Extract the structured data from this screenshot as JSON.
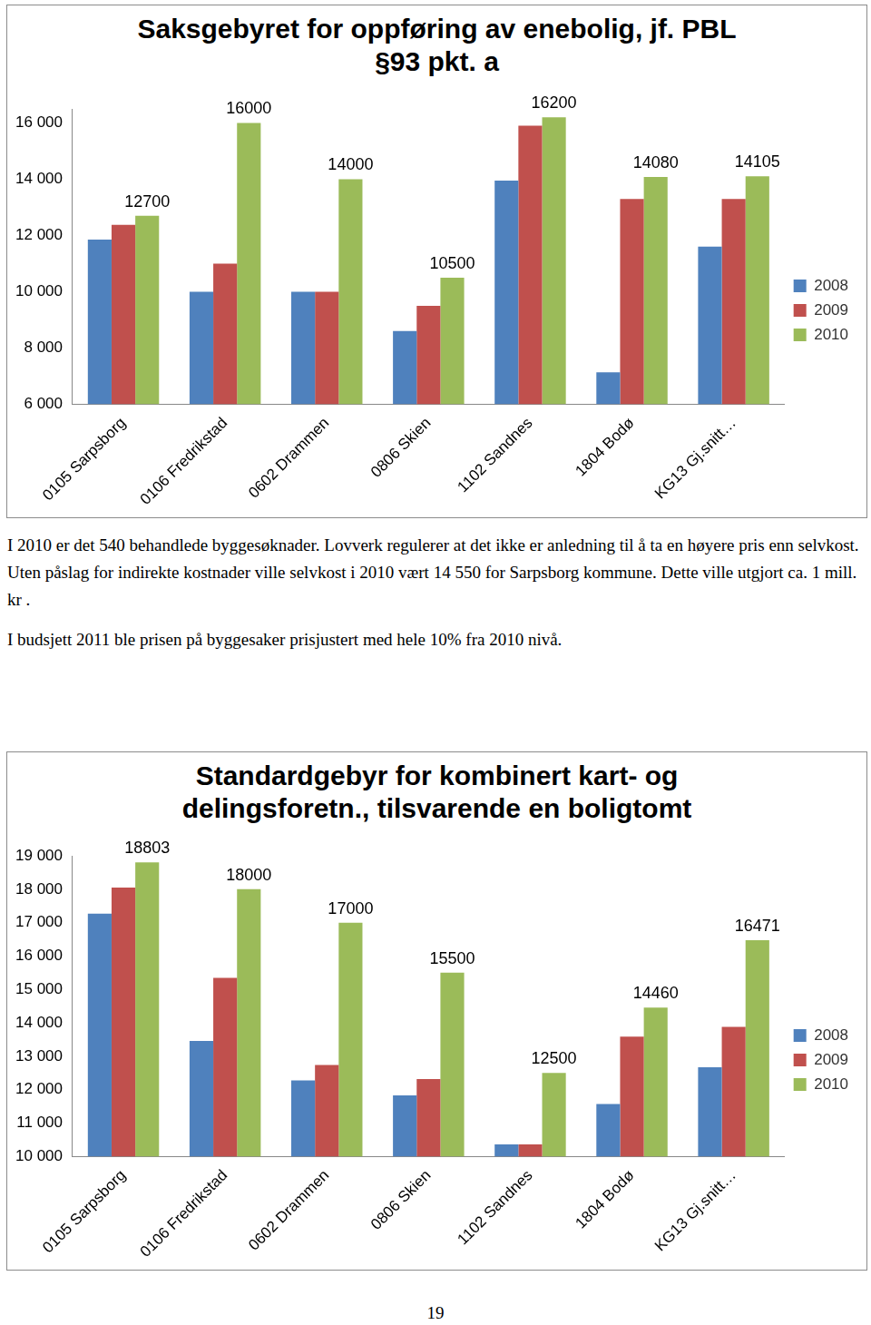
{
  "chart_data": [
    {
      "type": "bar",
      "title": "Saksgebyret for oppføring av enebolig, jf. PBL §93 pkt. a",
      "categories": [
        "0105 Sarpsborg",
        "0106 Fredrikstad",
        "0602 Drammen",
        "0806 Skien",
        "1102 Sandnes",
        "1804 Bodø",
        "KG13 Gj.snitt…"
      ],
      "series": [
        {
          "name": "2008",
          "color": "#4f81bd",
          "values": [
            11850,
            10000,
            10000,
            8600,
            13950,
            7130,
            11600
          ]
        },
        {
          "name": "2009",
          "color": "#c0504d",
          "values": [
            12380,
            11000,
            10000,
            9500,
            15900,
            13300,
            13300
          ]
        },
        {
          "name": "2010",
          "color": "#9bbb59",
          "values": [
            12700,
            16000,
            14000,
            10500,
            16200,
            14080,
            14105
          ],
          "data_labels": true
        }
      ],
      "ylim": [
        6000,
        16500
      ],
      "yticks": [
        {
          "value": 6000,
          "label": "6 000"
        },
        {
          "value": 8000,
          "label": "8 000"
        },
        {
          "value": 10000,
          "label": "10 000"
        },
        {
          "value": 12000,
          "label": "12 000"
        },
        {
          "value": 14000,
          "label": "14 000"
        },
        {
          "value": 16000,
          "label": "16 000"
        }
      ],
      "grid": false,
      "legend": "right"
    },
    {
      "type": "bar",
      "title": "Standardgebyr for kombinert kart- og delingsforetn., tilsvarende en boligtomt",
      "categories": [
        "0105 Sarpsborg",
        "0106 Fredrikstad",
        "0602 Drammen",
        "0806 Skien",
        "1102 Sandnes",
        "1804 Bodø",
        "KG13 Gj.snitt…"
      ],
      "series": [
        {
          "name": "2008",
          "color": "#4f81bd",
          "values": [
            17270,
            13460,
            12280,
            11830,
            10360,
            11570,
            12670
          ]
        },
        {
          "name": "2009",
          "color": "#c0504d",
          "values": [
            18050,
            15350,
            12740,
            12320,
            10360,
            13590,
            13880
          ]
        },
        {
          "name": "2010",
          "color": "#9bbb59",
          "values": [
            18803,
            18000,
            17000,
            15500,
            12500,
            14460,
            16471
          ],
          "data_labels": true
        }
      ],
      "ylim": [
        10000,
        19000
      ],
      "yticks": [
        {
          "value": 10000,
          "label": "10 000"
        },
        {
          "value": 11000,
          "label": "11 000"
        },
        {
          "value": 12000,
          "label": "12 000"
        },
        {
          "value": 13000,
          "label": "13 000"
        },
        {
          "value": 14000,
          "label": "14 000"
        },
        {
          "value": 15000,
          "label": "15 000"
        },
        {
          "value": 16000,
          "label": "16 000"
        },
        {
          "value": 17000,
          "label": "17 000"
        },
        {
          "value": 18000,
          "label": "18 000"
        },
        {
          "value": 19000,
          "label": "19 000"
        }
      ],
      "grid": false,
      "legend": "right"
    }
  ],
  "paragraphs": [
    "I 2010 er det 540 behandlede byggesøknader. Lovverk regulerer at det ikke er anledning til å ta en høyere pris enn selvkost. Uten påslag for indirekte kostnader ville selvkost i 2010 vært 14 550 for Sarpsborg kommune. Dette ville utgjort ca. 1 mill. kr .",
    "I budsjett 2011 ble prisen på byggesaker prisjustert med hele 10% fra 2010 nivå."
  ],
  "page_number": "19"
}
